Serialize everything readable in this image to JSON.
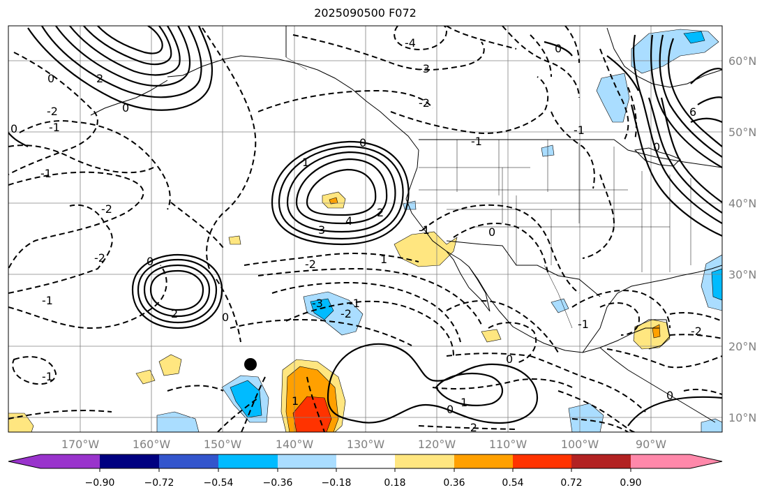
{
  "title": "2025090500 F072",
  "map": {
    "lon_labels": [
      "170°W",
      "160°W",
      "150°W",
      "140°W",
      "130°W",
      "120°W",
      "110°W",
      "100°W",
      "90°W"
    ],
    "lat_labels": [
      "60°N",
      "50°N",
      "40°N",
      "30°N",
      "20°N",
      "10°N"
    ],
    "contour_labels": [
      "-4",
      "-3",
      "-2",
      "-1",
      "0",
      "1",
      "2",
      "3",
      "4",
      "6",
      "-3",
      "-2",
      "0",
      "1",
      "-2",
      "0",
      "-1",
      "-1",
      "-2",
      "0",
      "2",
      "0",
      "-1",
      "1",
      "0",
      "1",
      "0",
      "-2",
      "-2",
      "-1",
      "0",
      "-1",
      "2",
      "0",
      "-1",
      "0",
      "-1",
      "0",
      "-2",
      "0",
      "-1",
      "-2"
    ],
    "colors": {
      "shading_levels": [
        "#9933cc",
        "#000080",
        "#3355cc",
        "#00bbff",
        "#aaddff",
        "#ffffff",
        "#ffe680",
        "#ffa000",
        "#ff3300",
        "#b22222",
        "#ff88aa"
      ]
    }
  },
  "colorbar": {
    "tick_labels": [
      "−0.90",
      "−0.72",
      "−0.54",
      "−0.36",
      "−0.18",
      "0.18",
      "0.36",
      "0.54",
      "0.72",
      "0.90"
    ],
    "colors": [
      "#9933cc",
      "#000080",
      "#3355cc",
      "#00bbff",
      "#aaddff",
      "#ffffff",
      "#ffe680",
      "#ffa000",
      "#ff3300",
      "#b22222",
      "#ff88aa"
    ]
  }
}
